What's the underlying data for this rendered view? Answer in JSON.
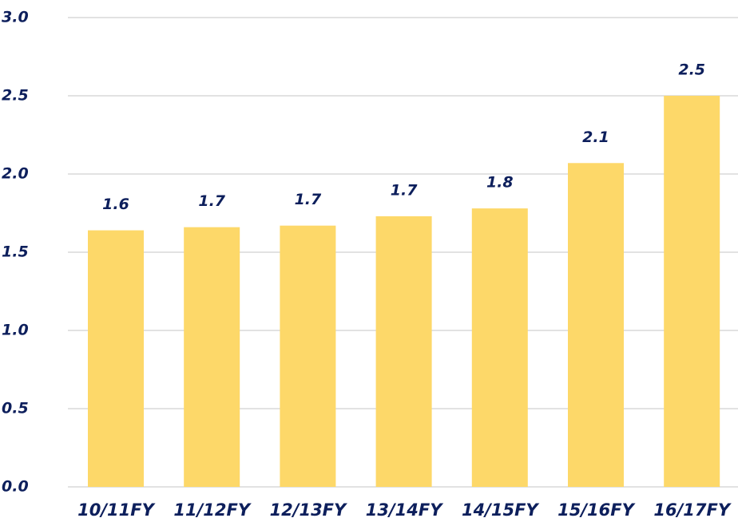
{
  "chart_data": {
    "type": "bar",
    "categories": [
      "10/11FY",
      "11/12FY",
      "12/13FY",
      "13/14FY",
      "14/15FY",
      "15/16FY",
      "16/17FY"
    ],
    "values": [
      1.64,
      1.66,
      1.67,
      1.73,
      1.78,
      2.07,
      2.5
    ],
    "value_labels": [
      "1.6",
      "1.7",
      "1.7",
      "1.7",
      "1.8",
      "2.1",
      "2.5"
    ],
    "color": "#fdd869",
    "ylim": [
      0,
      3
    ],
    "yticks": [
      {
        "value": 0,
        "label": "0.0"
      },
      0.5,
      {
        "value": 1,
        "label": "1.0"
      },
      1.5,
      {
        "value": 2,
        "label": "2.0"
      },
      2.5,
      {
        "value": 3,
        "label": "3.0"
      }
    ],
    "grid": true
  }
}
